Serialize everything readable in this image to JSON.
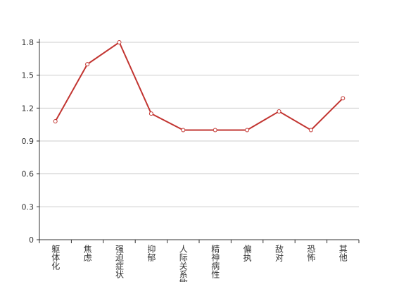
{
  "chart_data": {
    "type": "line",
    "categories": [
      "躯体化",
      "焦虑",
      "强迫症状",
      "抑郁",
      "人际关系敏感",
      "精神病性",
      "偏执",
      "敌对",
      "恐怖",
      "其他"
    ],
    "values": [
      1.08,
      1.6,
      1.8,
      1.15,
      1.0,
      1.0,
      1.0,
      1.17,
      1.0,
      1.29
    ],
    "color": "#c23531",
    "ylim": [
      0,
      1.8
    ],
    "yticks": [
      0,
      0.3,
      0.6,
      0.9,
      1.2,
      1.5,
      1.8
    ],
    "grid": true
  }
}
